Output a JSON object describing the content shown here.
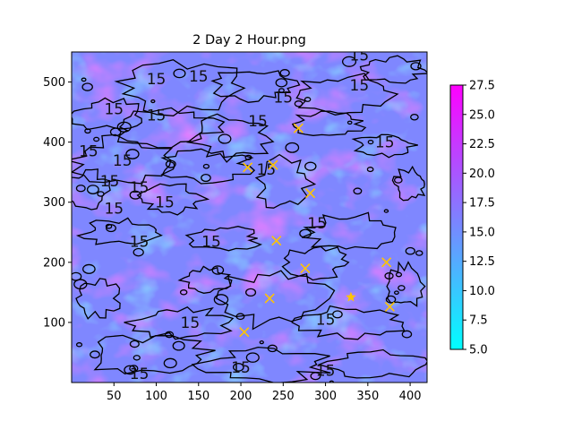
{
  "chart_data": {
    "type": "heatmap",
    "title": "2 Day 2 Hour.png",
    "xlabel": "",
    "ylabel": "",
    "xlim": [
      0,
      420
    ],
    "ylim": [
      0,
      550
    ],
    "x_ticks": [
      50,
      100,
      150,
      200,
      250,
      300,
      350,
      400
    ],
    "y_ticks": [
      100,
      200,
      300,
      400,
      500
    ],
    "colorbar": {
      "min": 5.0,
      "max": 27.5,
      "ticks": [
        "5.0",
        "7.5",
        "10.0",
        "12.5",
        "15.0",
        "17.5",
        "20.0",
        "22.5",
        "25.0",
        "27.5"
      ],
      "colormap": "cool",
      "low_color": "#00ffff",
      "high_color": "#ff00ff"
    },
    "contour_level": 15,
    "contour_labels": [
      {
        "text": "15",
        "x": 100,
        "y": 505
      },
      {
        "text": "15",
        "x": 150,
        "y": 510
      },
      {
        "text": "15",
        "x": 250,
        "y": 475
      },
      {
        "text": "15",
        "x": 340,
        "y": 495
      },
      {
        "text": "15",
        "x": 340,
        "y": 545
      },
      {
        "text": "15",
        "x": 50,
        "y": 455
      },
      {
        "text": "15",
        "x": 100,
        "y": 445
      },
      {
        "text": "15",
        "x": 220,
        "y": 435
      },
      {
        "text": "15",
        "x": 20,
        "y": 385
      },
      {
        "text": "15",
        "x": 60,
        "y": 370
      },
      {
        "text": "15",
        "x": 370,
        "y": 400
      },
      {
        "text": "15",
        "x": 45,
        "y": 335
      },
      {
        "text": "15",
        "x": 80,
        "y": 325
      },
      {
        "text": "15",
        "x": 110,
        "y": 300
      },
      {
        "text": "15",
        "x": 230,
        "y": 355
      },
      {
        "text": "15",
        "x": 50,
        "y": 290
      },
      {
        "text": "15",
        "x": 80,
        "y": 235
      },
      {
        "text": "15",
        "x": 165,
        "y": 235
      },
      {
        "text": "15",
        "x": 290,
        "y": 265
      },
      {
        "text": "15",
        "x": 140,
        "y": 100
      },
      {
        "text": "15",
        "x": 300,
        "y": 105
      },
      {
        "text": "15",
        "x": 200,
        "y": 25
      },
      {
        "text": "15",
        "x": 300,
        "y": 20
      },
      {
        "text": "15",
        "x": 80,
        "y": 15
      }
    ],
    "markers": [
      {
        "type": "x",
        "x": 268,
        "y": 423
      },
      {
        "type": "x",
        "x": 208,
        "y": 358
      },
      {
        "type": "x",
        "x": 238,
        "y": 362
      },
      {
        "type": "x",
        "x": 282,
        "y": 315
      },
      {
        "type": "x",
        "x": 242,
        "y": 236
      },
      {
        "type": "x",
        "x": 276,
        "y": 190
      },
      {
        "type": "x",
        "x": 372,
        "y": 200
      },
      {
        "type": "x",
        "x": 234,
        "y": 140
      },
      {
        "type": "x",
        "x": 376,
        "y": 126
      },
      {
        "type": "x",
        "x": 204,
        "y": 84
      },
      {
        "type": "star",
        "x": 330,
        "y": 142
      }
    ],
    "marker_color": "#ffc400"
  }
}
